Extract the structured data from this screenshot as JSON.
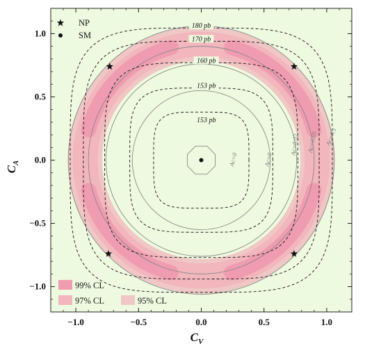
{
  "chart_data": {
    "type": "contour",
    "xlabel": "C",
    "xlabel_sub": "V",
    "ylabel": "C",
    "ylabel_sub": "A",
    "xlim": [
      -1.2,
      1.2
    ],
    "ylim": [
      -1.2,
      1.2
    ],
    "x_ticks": [
      "−1.0",
      "−0.5",
      "0.0",
      "0.5",
      "1.0"
    ],
    "x_tick_values": [
      -1.0,
      -0.5,
      0.0,
      0.5,
      1.0
    ],
    "y_ticks": [
      "1.0",
      "0.5",
      "0.0",
      "−0.5",
      "−1.0"
    ],
    "y_tick_values": [
      1.0,
      0.5,
      0.0,
      -0.5,
      -1.0
    ],
    "background_color": "#eefadf",
    "cross_section_contours": [
      {
        "label": "180 pb",
        "value_pb": 180,
        "radius": 1.045
      },
      {
        "label": "170 pb",
        "value_pb": 170,
        "radius": 0.94
      },
      {
        "label": "160 pb",
        "value_pb": 160,
        "radius": 0.77
      },
      {
        "label": "153 pb",
        "value_pb": 153,
        "radius": 0.57
      },
      {
        "label": "153 pb",
        "value_pb": 153,
        "radius": 0.38
      }
    ],
    "asymmetry_contours": [
      {
        "label": "Aᴄ=0",
        "radius": 0.12
      },
      {
        "label": "Aᴄ=0",
        "radius": 0.55
      },
      {
        "label": "Aᴄ=0.02",
        "radius": 0.76
      },
      {
        "label": "Aᴄ=0.05",
        "radius": 0.9
      },
      {
        "label": "Aᴄ=0.1",
        "radius": 1.06
      }
    ],
    "confidence_regions": [
      {
        "label": "99% CL",
        "color": "#f09cb0"
      },
      {
        "label": "97% CL",
        "color": "#f2b6bd"
      },
      {
        "label": "95% CL",
        "color": "#efc8c6"
      }
    ],
    "np_points": [
      {
        "x": -0.73,
        "y": 0.74
      },
      {
        "x": 0.74,
        "y": 0.74
      },
      {
        "x": -0.74,
        "y": -0.74
      },
      {
        "x": 0.74,
        "y": -0.74
      }
    ],
    "sm_point": {
      "x": 0.0,
      "y": 0.0
    },
    "legend": {
      "np_label": "NP",
      "sm_label": "SM"
    }
  }
}
